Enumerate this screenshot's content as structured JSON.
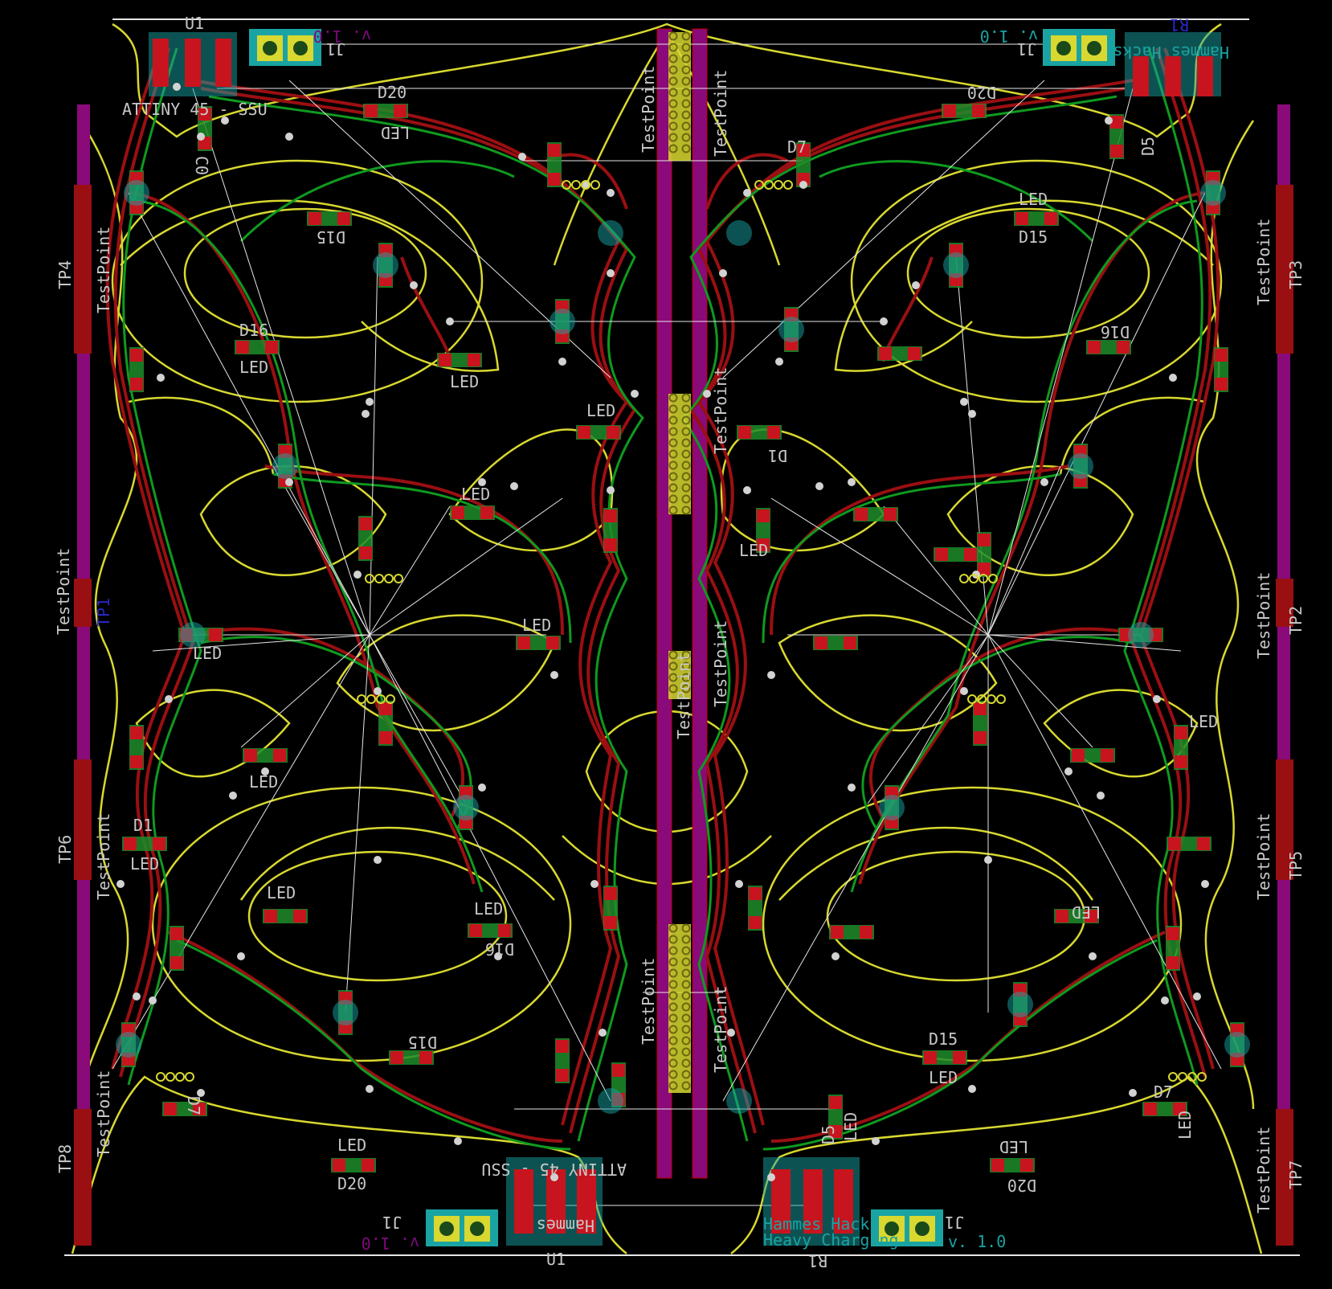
{
  "colors": {
    "background": "#000000",
    "outline": "#d8d830",
    "front_copper": "#9a0f12",
    "back_copper": "#0f9a1f",
    "ratsnest": "#e6e6e6",
    "silk_front": "#c8c8c8",
    "silk_back": "#2828c8",
    "fab": "#7d0a7d",
    "courtyard": "#1aa3a3",
    "pad": "#c8141e",
    "pad_back": "#1e8c2a",
    "testpoint_strip": "#8a0a7a",
    "via": "#d2d2d2"
  },
  "labels": {
    "attiny_top": "ATTINY 45 - SSU",
    "attiny_bottom": "ATTINY 45 - SSU",
    "u1_top": "U1",
    "u1_bottom": "U1",
    "r1_top": "R1",
    "r1_bottom": "R1",
    "j1_top": "J1",
    "j1_bottom": "J1",
    "ver_top_left": "v. 1.0",
    "ver_top_right": "v. 1.0",
    "ver_bottom_left": "v. 1.0",
    "ver_bottom_right": "v. 1.0",
    "hammes_top_right": "Hammes Hacks",
    "hammes_bottom_right": "Hammes Hacks",
    "hammes_bottom_left": "Hammes",
    "heavy_charging": "Heavy Charging",
    "tp1": "TP1",
    "tp2": "TP2",
    "tp3": "TP3",
    "tp4": "TP4",
    "tp5": "TP5",
    "tp6": "TP6",
    "tp7": "TP7",
    "tp8": "TP8",
    "testpoint": "TestPoint",
    "led": "LED",
    "d1": "D1",
    "d5": "D5",
    "d7": "D7",
    "d15": "D15",
    "d16": "D16",
    "d20": "D20",
    "c0": "C0"
  }
}
